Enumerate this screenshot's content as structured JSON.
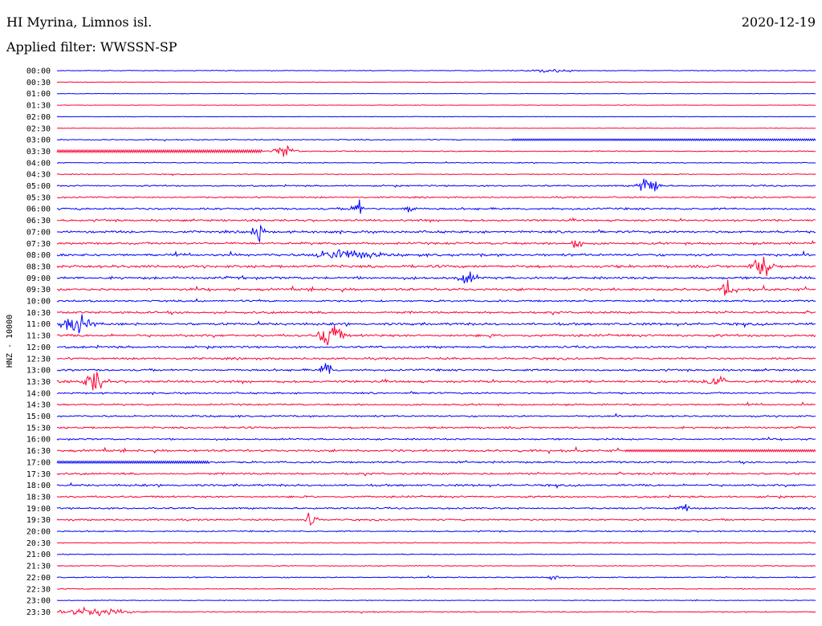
{
  "header": {
    "station": "HI Myrina, Limnos isl.",
    "date": "2020-12-19",
    "filter": "Applied filter: WWSSN-SP"
  },
  "chart_data": {
    "type": "line",
    "title": "",
    "ylabel": "HNZ - 10000",
    "xlabel": "",
    "colors": [
      "#0000ff",
      "#ff0033"
    ],
    "grid": false,
    "ticks": [
      "00:00",
      "00:30",
      "01:00",
      "01:30",
      "02:00",
      "02:30",
      "03:00",
      "03:30",
      "04:00",
      "04:30",
      "05:00",
      "05:30",
      "06:00",
      "06:30",
      "07:00",
      "07:30",
      "08:00",
      "08:30",
      "09:00",
      "09:30",
      "10:00",
      "10:30",
      "11:00",
      "11:30",
      "12:00",
      "12:30",
      "13:00",
      "13:30",
      "14:00",
      "14:30",
      "15:00",
      "15:30",
      "16:00",
      "16:30",
      "17:00",
      "17:30",
      "18:00",
      "18:30",
      "19:00",
      "19:30",
      "20:00",
      "20:30",
      "21:00",
      "21:30",
      "22:00",
      "22:30",
      "23:00",
      "23:30"
    ],
    "trace_level": [
      0.1,
      0.05,
      0.05,
      0.05,
      0.05,
      0.05,
      0.2,
      0.2,
      0.15,
      0.15,
      0.3,
      0.3,
      0.45,
      0.45,
      0.5,
      0.5,
      0.55,
      0.6,
      0.55,
      0.55,
      0.4,
      0.5,
      0.55,
      0.55,
      0.45,
      0.45,
      0.45,
      0.5,
      0.35,
      0.35,
      0.35,
      0.4,
      0.35,
      0.5,
      0.4,
      0.45,
      0.45,
      0.4,
      0.35,
      0.35,
      0.25,
      0.15,
      0.15,
      0.15,
      0.2,
      0.15,
      0.1,
      0.2
    ],
    "events": [
      {
        "row": 0,
        "x": [
          0.62,
          0.68
        ],
        "amp": 0.15
      },
      {
        "row": 6,
        "x": [
          0.6,
          1.0
        ],
        "amp": 0.3,
        "saturated": true
      },
      {
        "row": 7,
        "x": [
          0.0,
          0.27
        ],
        "amp": 0.45,
        "saturated": true
      },
      {
        "row": 7,
        "x": [
          0.29,
          0.31
        ],
        "amp": 0.6
      },
      {
        "row": 10,
        "x": [
          0.77,
          0.79
        ],
        "amp": 1.0
      },
      {
        "row": 12,
        "x": [
          0.39,
          0.4
        ],
        "amp": 1.2
      },
      {
        "row": 12,
        "x": [
          0.46,
          0.47
        ],
        "amp": 0.6
      },
      {
        "row": 14,
        "x": [
          0.26,
          0.27
        ],
        "amp": 1.4
      },
      {
        "row": 15,
        "x": [
          0.68,
          0.69
        ],
        "amp": 0.8
      },
      {
        "row": 16,
        "x": [
          0.35,
          0.41
        ],
        "amp": 0.6
      },
      {
        "row": 17,
        "x": [
          0.92,
          0.94
        ],
        "amp": 1.2
      },
      {
        "row": 18,
        "x": [
          0.53,
          0.55
        ],
        "amp": 0.6
      },
      {
        "row": 19,
        "x": [
          0.88,
          0.89
        ],
        "amp": 1.3
      },
      {
        "row": 22,
        "x": [
          0.01,
          0.04
        ],
        "amp": 0.9
      },
      {
        "row": 23,
        "x": [
          0.35,
          0.37
        ],
        "amp": 1.4
      },
      {
        "row": 26,
        "x": [
          0.35,
          0.36
        ],
        "amp": 1.2
      },
      {
        "row": 27,
        "x": [
          0.04,
          0.06
        ],
        "amp": 1.2
      },
      {
        "row": 27,
        "x": [
          0.86,
          0.88
        ],
        "amp": 0.7
      },
      {
        "row": 33,
        "x": [
          0.75,
          1.0
        ],
        "amp": 0.35,
        "saturated": true
      },
      {
        "row": 34,
        "x": [
          0.0,
          0.2
        ],
        "amp": 0.4,
        "saturated": true
      },
      {
        "row": 38,
        "x": [
          0.82,
          0.83
        ],
        "amp": 0.7
      },
      {
        "row": 39,
        "x": [
          0.33,
          0.34
        ],
        "amp": 0.9
      },
      {
        "row": 44,
        "x": [
          0.65,
          0.66
        ],
        "amp": 0.5
      },
      {
        "row": 47,
        "x": [
          0.02,
          0.08
        ],
        "amp": 0.45
      }
    ]
  }
}
